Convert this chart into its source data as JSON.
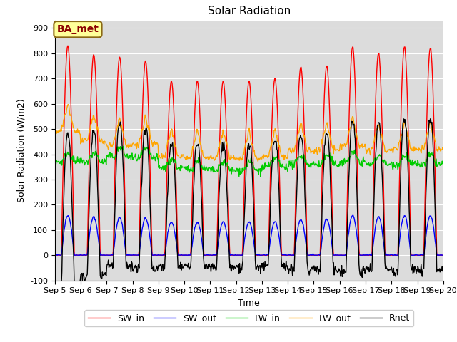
{
  "title": "Solar Radiation",
  "ylabel": "Solar Radiation (W/m2)",
  "xlabel": "Time",
  "ylim": [
    -100,
    930
  ],
  "yticks": [
    -100,
    0,
    100,
    200,
    300,
    400,
    500,
    600,
    700,
    800,
    900
  ],
  "n_days": 15,
  "xtick_labels": [
    "Sep 5",
    "Sep 6",
    "Sep 7",
    "Sep 8",
    "Sep 9",
    "Sep 10",
    "Sep 11",
    "Sep 12",
    "Sep 13",
    "Sep 14",
    "Sep 15",
    "Sep 16",
    "Sep 17",
    "Sep 18",
    "Sep 19",
    "Sep 20"
  ],
  "sw_in_peaks": [
    830,
    795,
    785,
    770,
    690,
    690,
    690,
    690,
    700,
    745,
    750,
    825,
    800,
    825,
    820
  ],
  "lw_in_day_bases": [
    370,
    370,
    390,
    385,
    345,
    340,
    335,
    335,
    350,
    360,
    360,
    370,
    360,
    360,
    360
  ],
  "lw_out_day": [
    490,
    450,
    435,
    440,
    390,
    385,
    385,
    385,
    390,
    415,
    415,
    435,
    415,
    420,
    420
  ],
  "sw_out_ratio": 0.19,
  "colors": {
    "SW_in": "#FF0000",
    "SW_out": "#0000FF",
    "LW_in": "#00CC00",
    "LW_out": "#FFA500",
    "Rnet": "#000000"
  },
  "bg_color": "#DCDCDC",
  "annotation_label": "BA_met",
  "annotation_bg": "#FFFF99",
  "annotation_border": "#8B6914",
  "linewidth": 1.0,
  "title_fontsize": 11,
  "axis_fontsize": 9,
  "tick_fontsize": 8,
  "legend_fontsize": 9,
  "figsize": [
    6.4,
    4.8
  ],
  "dpi": 100
}
